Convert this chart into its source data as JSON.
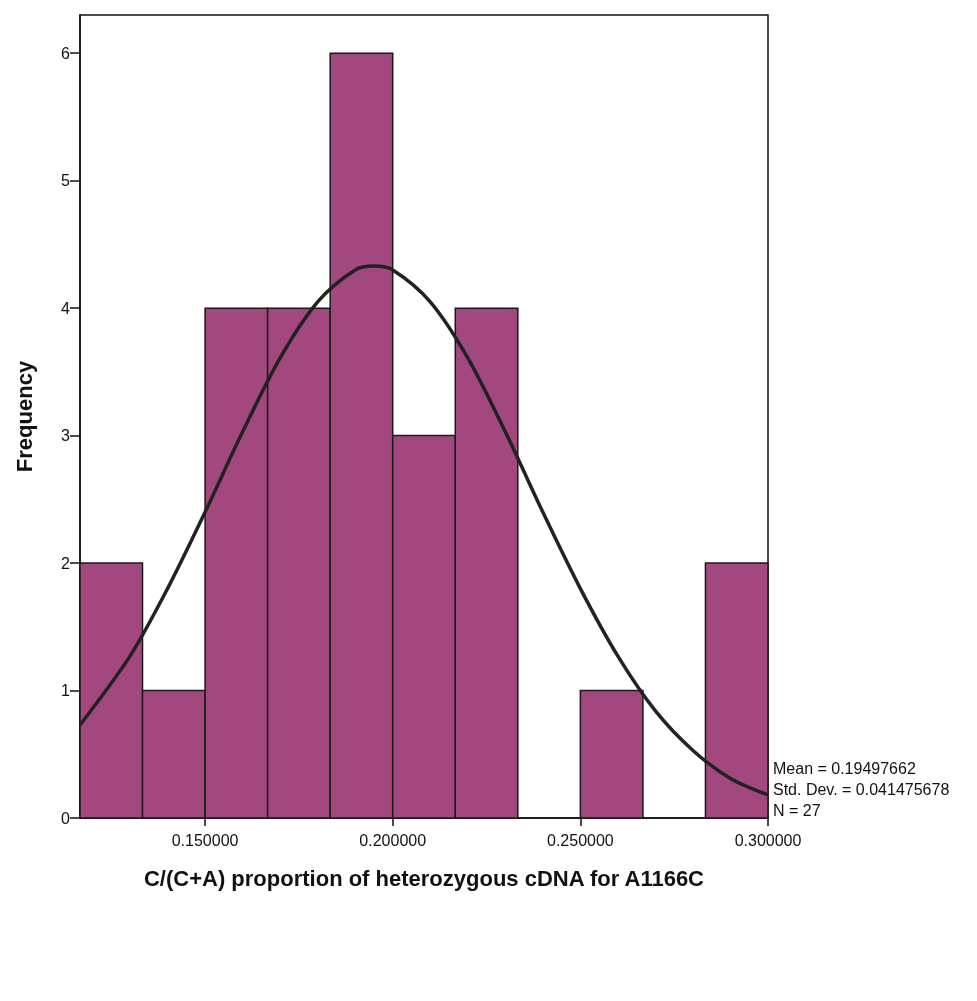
{
  "chart_data": {
    "type": "histogram",
    "xlabel": "C/(C+A) proportion of heterozygous cDNA for A1166C",
    "ylabel": "Frequency",
    "bins": [
      0.11667,
      0.13333,
      0.15,
      0.16667,
      0.18333,
      0.2,
      0.21667,
      0.23333,
      0.25,
      0.26667,
      0.28333,
      0.3
    ],
    "values": [
      2,
      1,
      4,
      4,
      6,
      3,
      4,
      0,
      1,
      0,
      2
    ],
    "color": "#a3487f",
    "xlim": [
      0.11667,
      0.3
    ],
    "xticks": [
      {
        "value": 0.15,
        "label": "0.150000"
      },
      {
        "value": 0.2,
        "label": "0.200000"
      },
      {
        "value": 0.25,
        "label": "0.250000"
      },
      {
        "value": 0.3,
        "label": "0.300000"
      }
    ],
    "ylim": [
      0,
      6.3
    ],
    "yticks": [
      0,
      1,
      2,
      3,
      4,
      5,
      6
    ],
    "grid": false,
    "series": [
      {
        "type": "line",
        "color": "#222222",
        "x": [
          0.11667,
          0.13,
          0.14,
          0.15,
          0.16,
          0.17,
          0.18,
          0.19,
          0.195,
          0.2,
          0.21,
          0.22,
          0.23,
          0.24,
          0.25,
          0.26,
          0.27,
          0.28,
          0.29,
          0.3
        ],
        "values": [
          0.73,
          1.27,
          1.8,
          2.4,
          3.03,
          3.61,
          4.05,
          4.3,
          4.33,
          4.3,
          4.05,
          3.61,
          3.03,
          2.4,
          1.8,
          1.27,
          0.84,
          0.53,
          0.31,
          0.18
        ]
      }
    ],
    "annotations": [
      "Mean = 0.19497662",
      "Std. Dev. = 0.041475678",
      "N = 27"
    ]
  }
}
